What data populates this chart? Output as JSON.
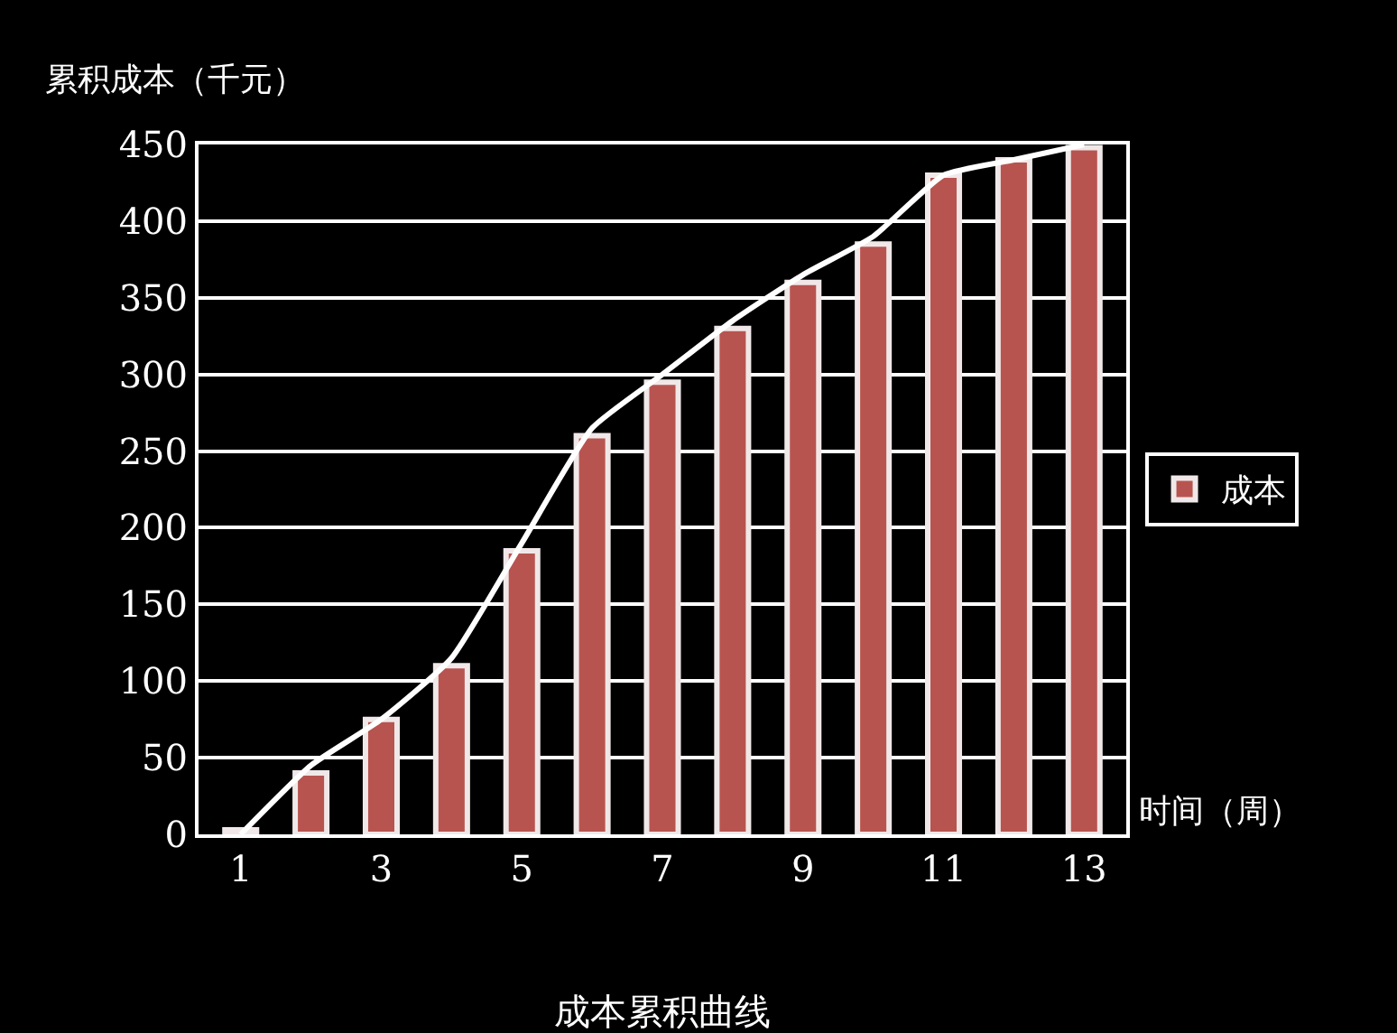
{
  "chart_data": {
    "type": "bar",
    "title": "成本累积曲线",
    "xlabel": "时间（周）",
    "ylabel": "累积成本（千元）",
    "x": [
      1,
      2,
      3,
      4,
      5,
      6,
      7,
      8,
      9,
      10,
      11,
      12,
      13
    ],
    "xlim": [
      0.4,
      13.6
    ],
    "xticks": [
      1,
      3,
      5,
      7,
      9,
      11,
      13
    ],
    "series": [
      {
        "name": "成本",
        "color": "#b85450",
        "values": [
          3,
          40,
          75,
          110,
          185,
          260,
          295,
          330,
          360,
          385,
          430,
          440,
          448
        ]
      },
      {
        "type": "line",
        "color": "#ffffff",
        "marker": "none",
        "line_style": "solid",
        "values": [
          0,
          45,
          75,
          115,
          190,
          265,
          300,
          335,
          365,
          390,
          430,
          440,
          450
        ]
      }
    ],
    "ylim": [
      0,
      450
    ],
    "yticks": [
      0,
      50,
      100,
      150,
      200,
      250,
      300,
      350,
      400,
      450
    ],
    "grid": "y",
    "legend": "right"
  }
}
